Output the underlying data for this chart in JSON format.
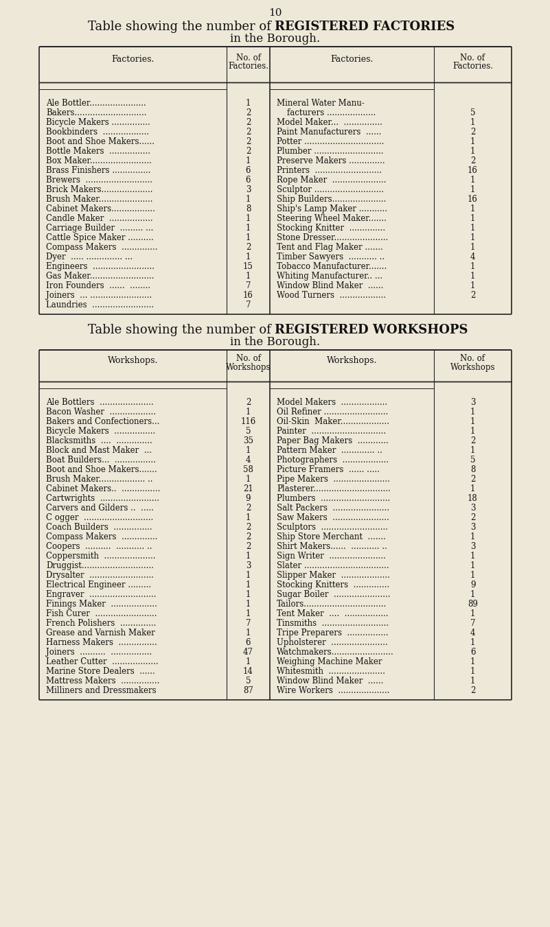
{
  "bg_color": "#ede8d8",
  "text_color": "#111111",
  "page_number": "10",
  "factories_title_1": "Table showing the number of ",
  "factories_title_bold": "REGISTERED FACTORIES",
  "factories_subtitle": "in the Borough.",
  "workshops_title_1": "Table showing the number of ",
  "workshops_title_bold": "REGISTERED WORKSHOPS",
  "workshops_subtitle": "in the Borough.",
  "factories_left": [
    [
      "Ale Bottler......................",
      "1"
    ],
    [
      "Bakers............................",
      "2"
    ],
    [
      "Bicycle Makers ...............",
      "2"
    ],
    [
      "Bookbinders  ..................",
      "2"
    ],
    [
      "Boot and Shoe Makers......",
      "2"
    ],
    [
      "Bottle Makers  ................",
      "2"
    ],
    [
      "Box Maker........................",
      "1"
    ],
    [
      "Brass Finishers ...............",
      "6"
    ],
    [
      "Brewers  ..........................",
      "6"
    ],
    [
      "Brick Makers....................",
      "3"
    ],
    [
      "Brush Maker.....................",
      "1"
    ],
    [
      "Cabinet Makers.................",
      "8"
    ],
    [
      "Candle Maker  .................",
      "1"
    ],
    [
      "Carriage Builder  ......... ...",
      "1"
    ],
    [
      "Cattle Spice Maker ..........",
      "1"
    ],
    [
      "Compass Makers  ..............",
      "2"
    ],
    [
      "Dyer  ..... .............. ...",
      "1"
    ],
    [
      "Engineers  ........................",
      "15"
    ],
    [
      "Gas Maker.........................",
      "1"
    ],
    [
      "Iron Founders  ......  ........",
      "7"
    ],
    [
      "Joiners  ... ........................",
      "16"
    ],
    [
      "Laundries  ........................",
      "7"
    ]
  ],
  "factories_right": [
    [
      "Mineral Water Manu-",
      ""
    ],
    [
      "    facturers ...................",
      "5"
    ],
    [
      "Model Maker...  ...............",
      "1"
    ],
    [
      "Paint Manufacturers  ......",
      "2"
    ],
    [
      "Potter ...............................",
      "1"
    ],
    [
      "Plumber ...........................",
      "1"
    ],
    [
      "Preserve Makers ..............",
      "2"
    ],
    [
      "Printers  ..........................",
      "16"
    ],
    [
      "Rope Maker  .....................",
      "1"
    ],
    [
      "Sculptor ...........................",
      "1"
    ],
    [
      "Ship Builders.....................",
      "16"
    ],
    [
      "Ship's Lamp Maker ...........",
      "1"
    ],
    [
      "Steering Wheel Maker.......",
      "1"
    ],
    [
      "Stocking Knitter  ..............",
      "1"
    ],
    [
      "Stone Dresser.....................",
      "1"
    ],
    [
      "Tent and Flag Maker .......",
      "1"
    ],
    [
      "Timber Sawyers  ........... ..",
      "4"
    ],
    [
      "Tobacco Manufacturer.......",
      "1"
    ],
    [
      "Whiting Manufacturer.. ...",
      "1"
    ],
    [
      "Window Blind Maker  ......",
      "1"
    ],
    [
      "Wood Turners  ..................",
      "2"
    ],
    [
      "",
      ""
    ]
  ],
  "workshops_left": [
    [
      "Ale Bottlers  .....................",
      "2"
    ],
    [
      "Bacon Washer  ..................",
      "1"
    ],
    [
      "Bakers and Confectioners...",
      "116"
    ],
    [
      "Bicycle Makers  ................",
      "5"
    ],
    [
      "Blacksmiths  ....  ..............",
      "35"
    ],
    [
      "Block and Mast Maker  ...",
      "1"
    ],
    [
      "Boat Builders...  ................",
      "4"
    ],
    [
      "Boot and Shoe Makers.......",
      "58"
    ],
    [
      "Brush Maker.................. ..",
      "1"
    ],
    [
      "Cabinet Makers..  ...............",
      "21"
    ],
    [
      "Cartwrights  .......................",
      "9"
    ],
    [
      "Carvers and Gilders ..  .....",
      "2"
    ],
    [
      "C ogger  ...........................",
      "1"
    ],
    [
      "Coach Builders  ...............",
      "2"
    ],
    [
      "Compass Makers  ..............",
      "2"
    ],
    [
      "Coopers  ..........  ........... ..",
      "2"
    ],
    [
      "Coppersmith  ....................",
      "1"
    ],
    [
      "Druggist............................",
      "3"
    ],
    [
      "Drysalter  .........................",
      "1"
    ],
    [
      "Electrical Engineer .........",
      "1"
    ],
    [
      "Engraver  ..........................",
      "1"
    ],
    [
      "Finings Maker  ..................",
      "1"
    ],
    [
      "Fish Curer  ........................",
      "1"
    ],
    [
      "French Polishers  ..............",
      "7"
    ],
    [
      "Grease and Varnish Maker",
      "1"
    ],
    [
      "Harness Makers  ...............",
      "6"
    ],
    [
      "Joiners  ..........  ................",
      "47"
    ],
    [
      "Leather Cutter  ..................",
      "1"
    ],
    [
      "Marine Store Dealers  ......",
      "14"
    ],
    [
      "Mattress Makers  ...............",
      "5"
    ],
    [
      "Milliners and Dressmakers",
      "87"
    ]
  ],
  "workshops_right": [
    [
      "Model Makers  ..................",
      "3"
    ],
    [
      "Oil Refiner .........................",
      "1"
    ],
    [
      "Oil-Skin  Maker...................",
      "1"
    ],
    [
      "Painter  .............................",
      "1"
    ],
    [
      "Paper Bag Makers  ............",
      "2"
    ],
    [
      "Pattern Maker  ............. ..",
      "1"
    ],
    [
      "Photographers  ..................",
      "5"
    ],
    [
      "Picture Framers  ...... .....",
      "8"
    ],
    [
      "Pipe Makers  ......................",
      "2"
    ],
    [
      "Plasterer..............................",
      "1"
    ],
    [
      "Plumbers  ...........................",
      "18"
    ],
    [
      "Salt Packers  ......................",
      "3"
    ],
    [
      "Saw Makers  ......................",
      "2"
    ],
    [
      "Sculptors  ..........................",
      "3"
    ],
    [
      "Ship Store Merchant  .......",
      "1"
    ],
    [
      "Shirt Makers......  ........... ..",
      "3"
    ],
    [
      "Sign Writer  ......................",
      "1"
    ],
    [
      "Slater .................................",
      "1"
    ],
    [
      "Slipper Maker  ...................",
      "1"
    ],
    [
      "Stocking Knitters  ..............",
      "9"
    ],
    [
      "Sugar Boiler  ......................",
      "1"
    ],
    [
      "Tailors................................",
      "89"
    ],
    [
      "Tent Maker  ....  .................",
      "1"
    ],
    [
      "Tinsmiths  ..........................",
      "7"
    ],
    [
      "Tripe Preparers  ................",
      "4"
    ],
    [
      "Upholsterer  ......................",
      "1"
    ],
    [
      "Watchmakers........................",
      "6"
    ],
    [
      "Weighing Machine Maker",
      "1"
    ],
    [
      "Whitesmith  ......................",
      "1"
    ],
    [
      "Window Blind Maker  ......",
      "1"
    ],
    [
      "Wire Workers  ....................",
      "2"
    ]
  ]
}
